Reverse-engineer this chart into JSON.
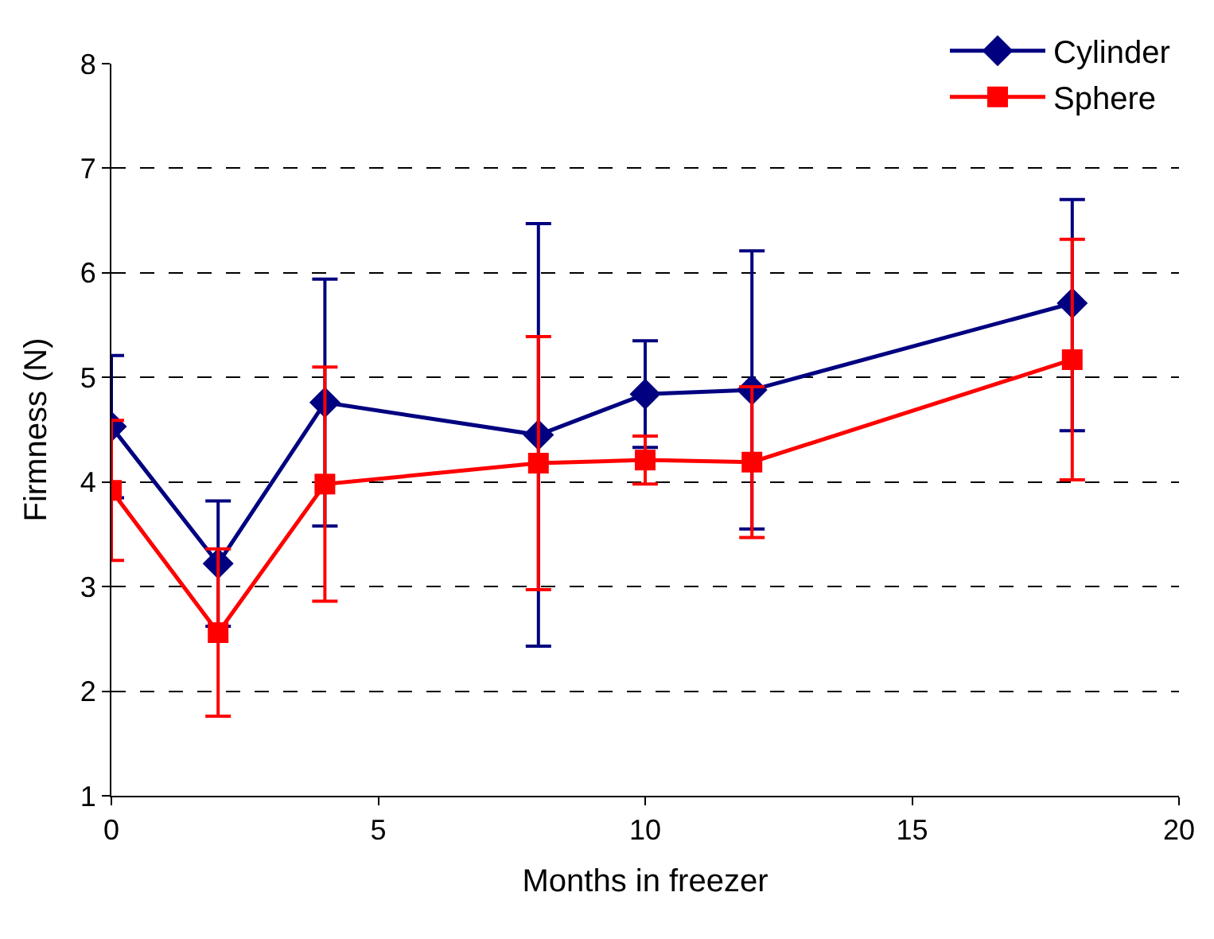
{
  "chart_data": {
    "type": "line",
    "xlabel": "Months in freezer",
    "ylabel": "Firmness (N)",
    "x": [
      0,
      2,
      4,
      8,
      10,
      12,
      18
    ],
    "series": [
      {
        "name": "Cylinder",
        "color": "#000080",
        "marker": "diamond",
        "values": [
          4.53,
          3.22,
          4.76,
          4.45,
          4.84,
          4.88,
          5.71
        ],
        "errors": [
          0.68,
          0.6,
          1.18,
          2.02,
          0.51,
          1.33,
          [
            4.49,
            6.7
          ]
        ]
      },
      {
        "name": "Sphere",
        "color": "#ff0000",
        "marker": "square",
        "values": [
          3.92,
          2.56,
          3.98,
          4.18,
          4.21,
          4.19,
          5.17
        ],
        "errors": [
          0.67,
          0.8,
          1.12,
          1.21,
          0.23,
          0.72,
          1.15
        ]
      }
    ],
    "xlim": [
      0,
      20
    ],
    "xticks": [
      0,
      5,
      10,
      15,
      20
    ],
    "ylim": [
      1,
      8
    ],
    "yticks": [
      1,
      2,
      3,
      4,
      5,
      6,
      7,
      8
    ],
    "grid": "y",
    "legend": "top right",
    "line_style": "solid"
  }
}
